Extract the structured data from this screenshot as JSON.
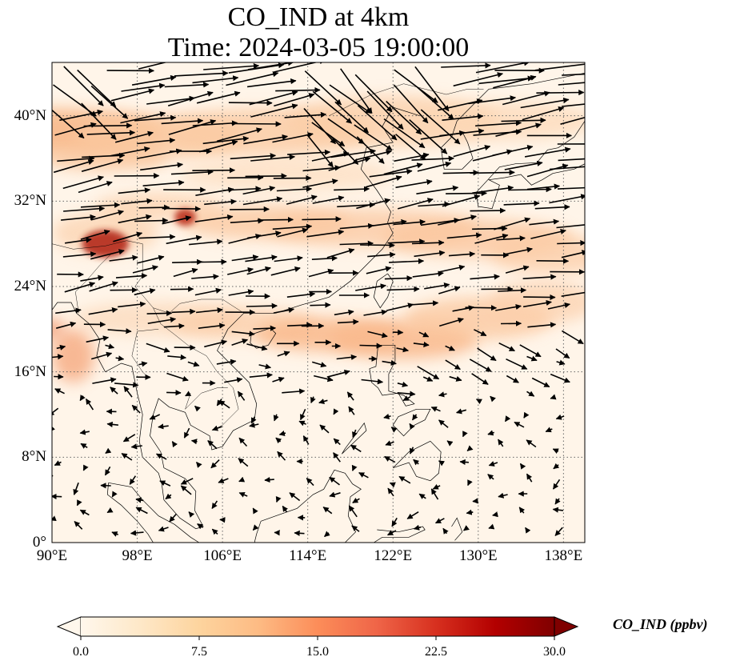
{
  "title": {
    "line1": "CO_IND at 4km",
    "line2": "Time: 2024-03-05 19:00:00"
  },
  "map": {
    "lon_range": [
      90,
      140
    ],
    "lat_range": [
      0,
      45
    ],
    "lat_ticks": [
      {
        "value": 0,
        "label": "0°"
      },
      {
        "value": 8,
        "label": "8°N"
      },
      {
        "value": 16,
        "label": "16°N"
      },
      {
        "value": 24,
        "label": "24°N"
      },
      {
        "value": 32,
        "label": "32°N"
      },
      {
        "value": 40,
        "label": "40°N"
      }
    ],
    "lon_ticks": [
      {
        "value": 90,
        "label": "90°E"
      },
      {
        "value": 98,
        "label": "98°E"
      },
      {
        "value": 106,
        "label": "106°E"
      },
      {
        "value": 114,
        "label": "114°E"
      },
      {
        "value": 122,
        "label": "122°E"
      },
      {
        "value": 130,
        "label": "130°E"
      },
      {
        "value": 138,
        "label": "138°E"
      }
    ],
    "gridlines": true,
    "wind_vectors": true
  },
  "colorbar": {
    "label": "CO_IND (ppbv)",
    "colormap": "OrRd",
    "min": 0.0,
    "max": 30.0,
    "extend": "both",
    "ticks": [
      "0.0",
      "7.5",
      "15.0",
      "22.5",
      "30.0"
    ],
    "colors": [
      "#fff7ec",
      "#fee8c8",
      "#fdd49e",
      "#fdbb84",
      "#fc8d59",
      "#ef6548",
      "#d7301f",
      "#b30000",
      "#7f0000"
    ]
  }
}
